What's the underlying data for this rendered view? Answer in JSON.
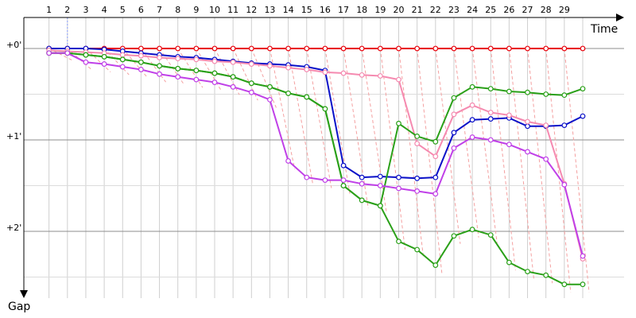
{
  "chart_data": {
    "type": "line",
    "title": "",
    "xlabel": "Time",
    "ylabel": "Gap",
    "x_ticks": [
      "1",
      "2",
      "3",
      "4",
      "5",
      "6",
      "7",
      "8",
      "9",
      "10",
      "11",
      "12",
      "13",
      "14",
      "15",
      "16",
      "17",
      "18",
      "19",
      "20",
      "21",
      "22",
      "23",
      "24",
      "25",
      "26",
      "27",
      "28",
      "29"
    ],
    "y_ticks": [
      "+0'",
      "+1'",
      "+2'"
    ],
    "y_tick_values": [
      0,
      1,
      2
    ],
    "xlim": [
      0,
      30.5
    ],
    "ylim": [
      -0.15,
      2.6
    ],
    "y_inverted": true,
    "grid": true,
    "legend": "none",
    "series": [
      {
        "color": "#e8000b",
        "x": [
          1,
          2,
          3,
          4,
          5,
          6,
          7,
          8,
          9,
          10,
          11,
          12,
          13,
          14,
          15,
          16,
          17,
          18,
          19,
          20,
          21,
          22,
          23,
          24,
          25,
          26,
          27,
          28,
          29,
          30
        ],
        "values": [
          0,
          0,
          0,
          0,
          0,
          0,
          0,
          0,
          0,
          0,
          0,
          0,
          0,
          0,
          0,
          0,
          0,
          0,
          0,
          0,
          0,
          0,
          0,
          0,
          0,
          0,
          0,
          0,
          0,
          0
        ]
      },
      {
        "color": "#0a10c8",
        "x": [
          1,
          2,
          3,
          4,
          5,
          6,
          7,
          8,
          9,
          10,
          11,
          12,
          13,
          14,
          15,
          16,
          17,
          18,
          19,
          20,
          21,
          22,
          23,
          24,
          25,
          26,
          27,
          28,
          29,
          30
        ],
        "values": [
          0,
          0,
          0,
          0.01,
          0.03,
          0.05,
          0.07,
          0.09,
          0.1,
          0.12,
          0.14,
          0.16,
          0.17,
          0.18,
          0.2,
          0.24,
          1.28,
          1.41,
          1.4,
          1.41,
          1.42,
          1.41,
          0.92,
          0.78,
          0.77,
          0.76,
          0.85,
          0.85,
          0.84,
          0.74
        ]
      },
      {
        "color": "#f58ab0",
        "x": [
          1,
          2,
          3,
          4,
          5,
          6,
          7,
          8,
          9,
          10,
          11,
          12,
          13,
          14,
          15,
          16,
          17,
          18,
          19,
          20,
          21,
          22,
          23,
          24,
          25,
          26,
          27,
          28,
          29,
          30
        ],
        "values": [
          0.02,
          0.03,
          0.04,
          0.05,
          0.07,
          0.08,
          0.1,
          0.11,
          0.12,
          0.14,
          0.15,
          0.17,
          0.19,
          0.21,
          0.23,
          0.26,
          0.27,
          0.29,
          0.3,
          0.34,
          1.04,
          1.18,
          0.72,
          0.62,
          0.7,
          0.73,
          0.8,
          0.84,
          1.48,
          2.3
        ]
      },
      {
        "color": "#2aa018",
        "x": [
          1,
          2,
          3,
          4,
          5,
          6,
          7,
          8,
          9,
          10,
          11,
          12,
          13,
          14,
          15,
          16,
          17,
          18,
          19,
          20,
          21,
          22,
          23,
          24,
          25,
          26,
          27,
          28,
          29,
          30
        ],
        "values": [
          0.05,
          0.05,
          0.07,
          0.09,
          0.12,
          0.15,
          0.19,
          0.22,
          0.24,
          0.27,
          0.31,
          0.38,
          0.42,
          0.49,
          0.53,
          0.66,
          1.5,
          1.66,
          1.72,
          0.82,
          0.96,
          1.02,
          0.54,
          0.42,
          0.44,
          0.47,
          0.48,
          0.5,
          0.51,
          0.44
        ]
      },
      {
        "color": "#2aa018",
        "x": [
          1,
          2,
          3,
          4,
          5,
          6,
          7,
          8,
          9,
          10,
          11,
          12,
          13,
          14,
          15,
          16,
          17,
          18,
          19,
          20,
          21,
          22,
          23,
          24,
          25,
          26,
          27,
          28,
          29,
          30
        ],
        "values": [
          0.05,
          0.05,
          0.07,
          0.09,
          0.12,
          0.15,
          0.19,
          0.22,
          0.24,
          0.27,
          0.31,
          0.38,
          0.42,
          0.49,
          0.53,
          0.66,
          1.5,
          1.66,
          1.72,
          2.11,
          2.2,
          2.37,
          2.05,
          1.98,
          2.04,
          2.34,
          2.44,
          2.48,
          2.58,
          2.58
        ]
      },
      {
        "color": "#c040e8",
        "x": [
          1,
          2,
          3,
          4,
          5,
          6,
          7,
          8,
          9,
          10,
          11,
          12,
          13,
          14,
          15,
          16,
          17,
          18,
          19,
          20,
          21,
          22,
          23,
          24,
          25,
          26,
          27,
          28,
          29,
          30
        ],
        "values": [
          0.05,
          0.05,
          0.15,
          0.17,
          0.2,
          0.23,
          0.28,
          0.31,
          0.34,
          0.37,
          0.42,
          0.48,
          0.56,
          1.23,
          1.41,
          1.44,
          1.44,
          1.48,
          1.5,
          1.53,
          1.56,
          1.59,
          1.09,
          0.97,
          1.0,
          1.05,
          1.13,
          1.21,
          1.49,
          2.27
        ]
      }
    ]
  }
}
